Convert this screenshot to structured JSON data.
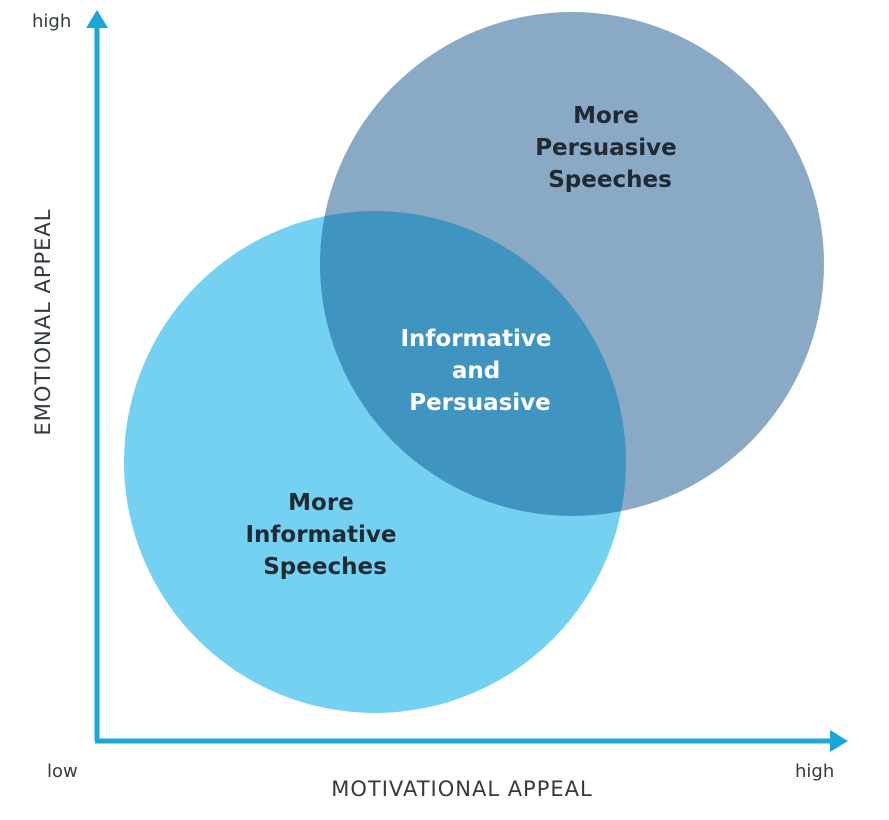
{
  "axes": {
    "y_title": "EMOTIONAL APPEAL",
    "x_title": "MOTIVATIONAL APPEAL",
    "y_high": "high",
    "origin_low": "low",
    "x_high": "high"
  },
  "circles": {
    "persuasive": {
      "lines": [
        "More",
        "Persuasive",
        "Speeches"
      ]
    },
    "informative": {
      "lines": [
        "More",
        "Informative",
        "Speeches"
      ]
    },
    "overlap": {
      "lines": [
        "Informative",
        "and",
        "Persuasive"
      ]
    }
  },
  "colors": {
    "axis": "#1aa7d8",
    "persuasive_circle": "#8aa9c4",
    "informative_circle": "#74d1f1",
    "overlap_fill": "#4094c0",
    "dark_text": "#1f2a33",
    "light_text": "#ffffff"
  }
}
